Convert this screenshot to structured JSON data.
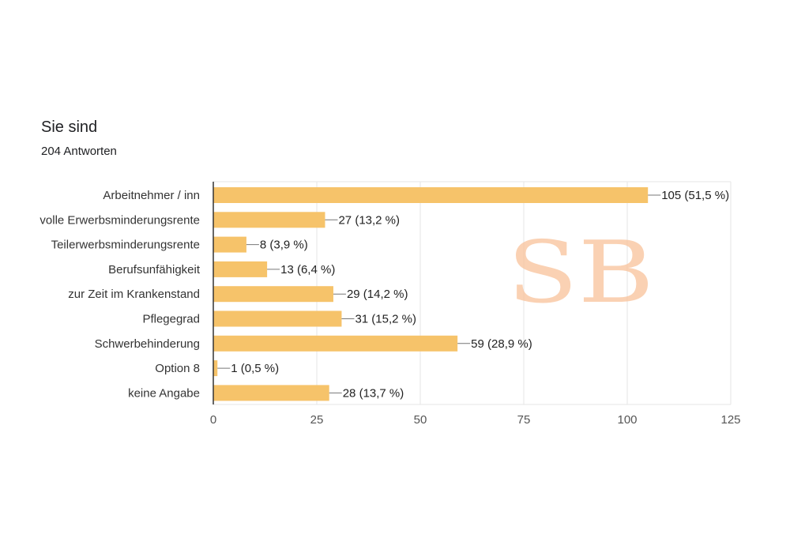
{
  "header": {
    "title": "Sie sind",
    "subtitle": "204 Antworten"
  },
  "watermark": {
    "text": "SB"
  },
  "colors": {
    "bar": "#f6c36a",
    "grid": "#e6e6e6",
    "axis": "#333333",
    "watermark": "#f9c29a"
  },
  "chart_data": {
    "type": "bar",
    "orientation": "horizontal",
    "categories": [
      "Arbeitnehmer / inn",
      "volle Erwerbsminderungsrente",
      "Teilerwerbsminderungsrente",
      "Berufsunfähigkeit",
      "zur Zeit im Krankenstand",
      "Pflegegrad",
      "Schwerbehinderung",
      "Option 8",
      "keine Angabe"
    ],
    "values": [
      105,
      27,
      8,
      13,
      29,
      31,
      59,
      1,
      28
    ],
    "data_labels": [
      "105 (51,5 %)",
      "27 (13,2 %)",
      "8 (3,9 %)",
      "13 (6,4 %)",
      "29 (14,2 %)",
      "31 (15,2 %)",
      "59 (28,9 %)",
      "1 (0,5 %)",
      "28 (13,7 %)"
    ],
    "xticks": [
      "0",
      "25",
      "50",
      "75",
      "100",
      "125"
    ],
    "xlim": [
      0,
      125
    ],
    "grid": true
  }
}
